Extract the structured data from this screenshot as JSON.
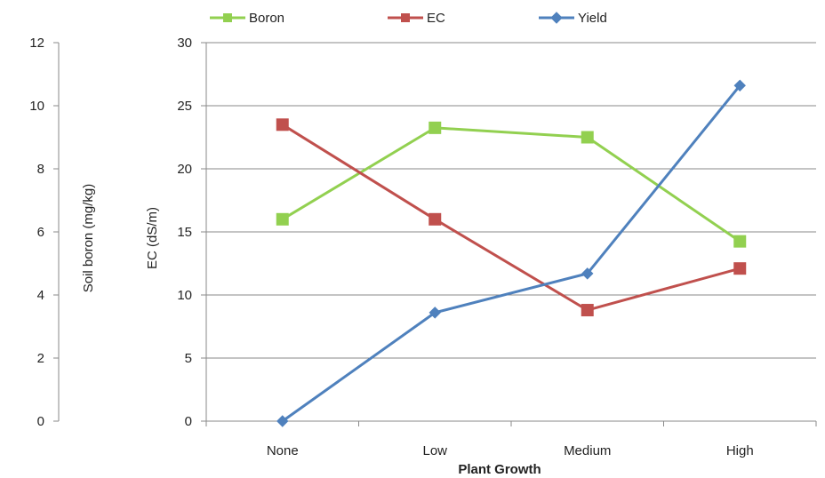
{
  "chart_data": {
    "type": "line",
    "categories": [
      "None",
      "Low",
      "Medium",
      "High"
    ],
    "xlabel": "Plant Growth",
    "y_left": {
      "label": "Soil boron (mg/kg)",
      "ylim": [
        0,
        12
      ],
      "ticks": [
        0,
        2,
        4,
        6,
        8,
        10,
        12
      ]
    },
    "y_right": {
      "label": "EC (dS/m)",
      "ylim": [
        0,
        30
      ],
      "ticks": [
        0,
        5,
        10,
        15,
        20,
        25,
        30
      ]
    },
    "grid": true,
    "legend_position": "top",
    "series": [
      {
        "name": "Boron",
        "axis": "left",
        "color": "#92D050",
        "marker": "square",
        "values": [
          6.4,
          9.3,
          9.0,
          5.7
        ]
      },
      {
        "name": "EC",
        "axis": "right",
        "color": "#C0504D",
        "marker": "square",
        "values": [
          23.5,
          16.0,
          8.8,
          12.1
        ]
      },
      {
        "name": "Yield",
        "axis": "right",
        "color": "#4F81BD",
        "marker": "diamond",
        "values": [
          0,
          8.6,
          11.7,
          26.6
        ]
      }
    ]
  }
}
